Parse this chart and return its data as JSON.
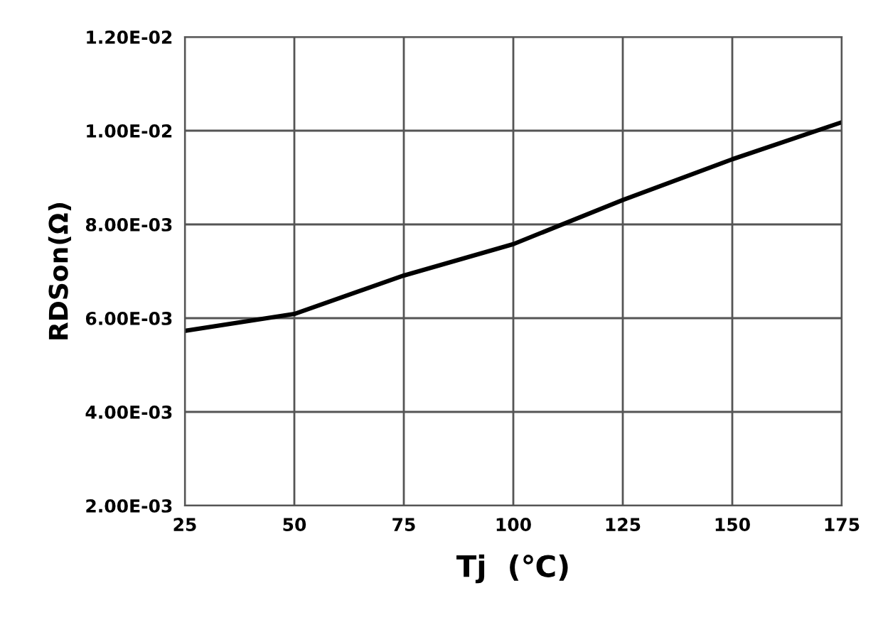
{
  "chart_data": {
    "type": "line",
    "xlabel": "Tj  (℃)",
    "ylabel": "RDSon(Ω)",
    "x": [
      25,
      50,
      75,
      100,
      125,
      150,
      175
    ],
    "series": [
      {
        "color": "#000000",
        "values": [
          0.00573,
          0.00609,
          0.00691,
          0.00758,
          0.00852,
          0.00939,
          0.01018
        ]
      }
    ],
    "xlim": [
      25,
      175
    ],
    "xticks": [
      25,
      50,
      75,
      100,
      125,
      150,
      175
    ],
    "ylim": [
      0.002,
      0.012
    ],
    "yticks": [
      {
        "value": 0.002,
        "label": "2.00E-03"
      },
      {
        "value": 0.004,
        "label": "4.00E-03"
      },
      {
        "value": 0.006,
        "label": "6.00E-03"
      },
      {
        "value": 0.008,
        "label": "8.00E-03"
      },
      {
        "value": 0.01,
        "label": "1.00E-02"
      },
      {
        "value": 0.012,
        "label": "1.20E-02"
      }
    ],
    "grid": true,
    "marker": "none",
    "line_style": "solid"
  }
}
